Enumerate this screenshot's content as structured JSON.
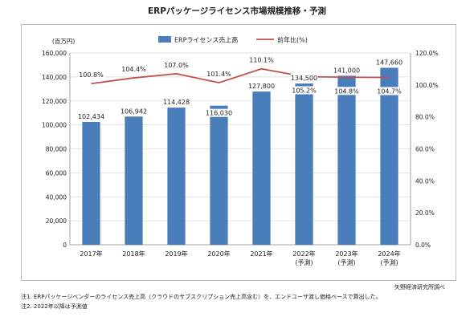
{
  "title": "ERPパッケージライセンス市場規模推移・予測",
  "chart_data": {
    "type": "bar",
    "title": "ERPパッケージライセンス市場規模推移・予測",
    "unit_label": "(百万円)",
    "categories": [
      "2017年",
      "2018年",
      "2019年",
      "2020年",
      "2021年",
      "2022年",
      "2023年",
      "2024年"
    ],
    "category_sublabels": [
      "",
      "",
      "",
      "",
      "",
      "(予測)",
      "(予測)",
      "(予測)"
    ],
    "series": [
      {
        "name": "ERPライセンス売上高",
        "type": "bar",
        "axis": "left",
        "color": "#4a7ebb",
        "values": [
          102434,
          106942,
          114428,
          116030,
          127800,
          134500,
          141000,
          147660
        ],
        "labels": [
          "102,434",
          "106,942",
          "114,428",
          "116,030",
          "127,800",
          "134,500",
          "141,000",
          "147,660"
        ]
      },
      {
        "name": "前年比(%)",
        "type": "line",
        "axis": "right",
        "color": "#c0504d",
        "values": [
          100.8,
          104.4,
          107.0,
          101.4,
          110.1,
          105.2,
          104.8,
          104.7
        ],
        "labels": [
          "100.8%",
          "104.4%",
          "107.0%",
          "101.4%",
          "110.1%",
          "105.2%",
          "104.8%",
          "104.7%"
        ]
      }
    ],
    "ylim": [
      0,
      160000
    ],
    "yticks": [
      "0",
      "20,000",
      "40,000",
      "60,000",
      "80,000",
      "100,000",
      "120,000",
      "140,000",
      "160,000"
    ],
    "y2lim": [
      0,
      120
    ],
    "y2ticks": [
      "0.0%",
      "20.0%",
      "40.0%",
      "60.0%",
      "80.0%",
      "100.0%",
      "120.0%"
    ],
    "grid": true,
    "legend_position": "top"
  },
  "notes": {
    "source": "矢野経済研究所調べ",
    "note1": "注1. ERPパッケージベンダーのライセンス売上高（クラウドのサブスクリプション売上高含む）を、エンドユーザ渡し価格ベースで算出した。",
    "note2": "注2. 2022年以降は予測値"
  }
}
